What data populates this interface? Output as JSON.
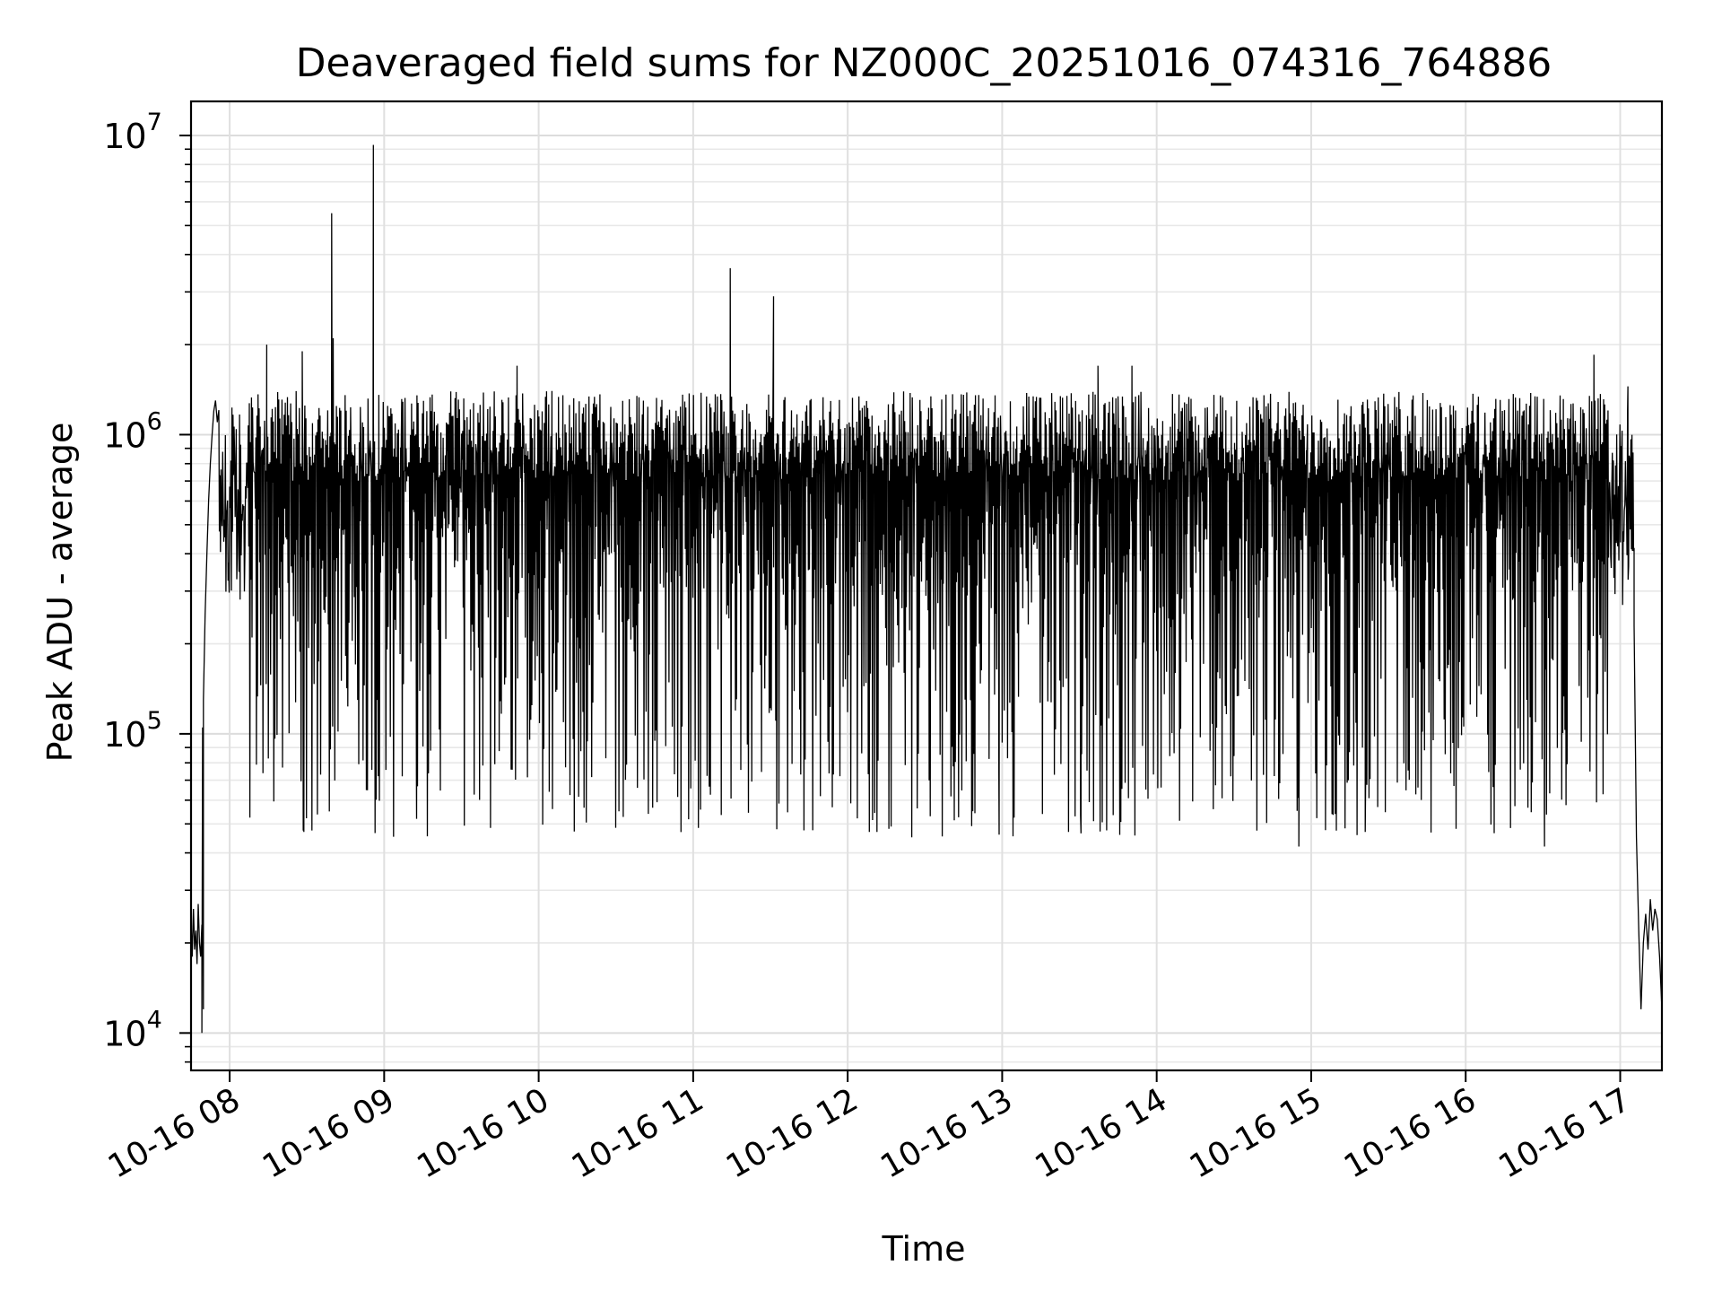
{
  "chart_data": {
    "type": "line",
    "title": "Deaveraged field sums for NZ000C_20251016_074316_764886",
    "xlabel": "Time",
    "ylabel": "Peak ADU - average",
    "yscale": "log",
    "ylim": [
      7500,
      13000000
    ],
    "xlim_hours": [
      7.75,
      17.27
    ],
    "grid": true,
    "grid_minor": true,
    "legend": "none",
    "x_ticks": [
      {
        "hour": 8,
        "label": "10-16 08"
      },
      {
        "hour": 9,
        "label": "10-16 09"
      },
      {
        "hour": 10,
        "label": "10-16 10"
      },
      {
        "hour": 11,
        "label": "10-16 11"
      },
      {
        "hour": 12,
        "label": "10-16 12"
      },
      {
        "hour": 13,
        "label": "10-16 13"
      },
      {
        "hour": 14,
        "label": "10-16 14"
      },
      {
        "hour": 15,
        "label": "10-16 15"
      },
      {
        "hour": 16,
        "label": "10-16 16"
      },
      {
        "hour": 17,
        "label": "10-16 17"
      }
    ],
    "y_ticks": [
      {
        "value": 10000,
        "base": "10",
        "exp": "4"
      },
      {
        "value": 100000,
        "base": "10",
        "exp": "5"
      },
      {
        "value": 1000000,
        "base": "10",
        "exp": "6"
      },
      {
        "value": 10000000,
        "base": "10",
        "exp": "7"
      }
    ],
    "series": [
      {
        "name": "Deaveraged field sum",
        "color": "#000000",
        "approximation": "dense noisy series; main band roughly 5e4–1.4e6",
        "band_low_min": 45000,
        "band_low_max": 300000,
        "band_high_min": 700000,
        "band_high_max": 1400000,
        "segments": [
          {
            "hour_start": 7.75,
            "hour_end": 7.82,
            "values": [
              24000,
              18000,
              26000,
              19000,
              22000,
              17000,
              27000,
              20000,
              18000,
              23000
            ]
          },
          {
            "hour_start": 7.82,
            "hour_end": 7.83,
            "values": [
              10000,
              105000,
              12000
            ]
          },
          {
            "hour_start": 7.83,
            "hour_end": 7.92,
            "values": [
              130000,
              250000,
              400000,
              600000,
              800000,
              1000000,
              1200000,
              1300000,
              1100000
            ]
          },
          {
            "hour_start": 17.09,
            "hour_end": 17.27,
            "values": [
              230000,
              45000,
              22000,
              12000,
              20000,
              25000,
              19000,
              28000,
              22000,
              26000,
              24000,
              18000,
              12000
            ]
          }
        ],
        "spikes": [
          {
            "hour": 8.24,
            "value": 2000000
          },
          {
            "hour": 8.47,
            "value": 1900000
          },
          {
            "hour": 8.66,
            "value": 5500000
          },
          {
            "hour": 8.67,
            "value": 2100000
          },
          {
            "hour": 8.93,
            "value": 9300000
          },
          {
            "hour": 9.86,
            "value": 1700000
          },
          {
            "hour": 11.24,
            "value": 3600000
          },
          {
            "hour": 11.52,
            "value": 2900000
          },
          {
            "hour": 13.62,
            "value": 1700000
          },
          {
            "hour": 13.84,
            "value": 1700000
          },
          {
            "hour": 16.83,
            "value": 1850000
          },
          {
            "hour": 17.05,
            "value": 1450000
          }
        ],
        "dips": [
          {
            "hour": 8.48,
            "value": 47000
          },
          {
            "hour": 9.21,
            "value": 52000
          },
          {
            "hour": 12.14,
            "value": 47000
          },
          {
            "hour": 12.98,
            "value": 46000
          },
          {
            "hour": 13.51,
            "value": 46500
          },
          {
            "hour": 14.92,
            "value": 42000
          },
          {
            "hour": 15.35,
            "value": 47000
          },
          {
            "hour": 16.51,
            "value": 42000
          }
        ]
      }
    ]
  }
}
